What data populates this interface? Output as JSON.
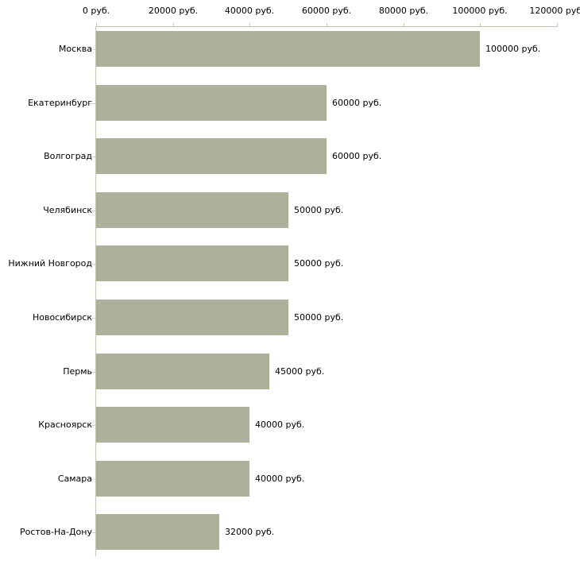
{
  "chart_data": {
    "type": "bar",
    "orientation": "horizontal",
    "title": "",
    "xlabel": "",
    "ylabel": "",
    "grid": false,
    "legend": null,
    "categories": [
      "Москва",
      "Екатеринбург",
      "Волгоград",
      "Челябинск",
      "Нижний Новгород",
      "Новосибирск",
      "Пермь",
      "Красноярск",
      "Самара",
      "Ростов-На-Дону"
    ],
    "values": [
      100000,
      60000,
      60000,
      50000,
      50000,
      50000,
      45000,
      40000,
      40000,
      32000
    ],
    "value_labels": [
      "100000 руб.",
      "60000 руб.",
      "60000 руб.",
      "50000 руб.",
      "50000 руб.",
      "50000 руб.",
      "45000 руб.",
      "40000 руб.",
      "40000 руб.",
      "32000 руб."
    ],
    "xlim": [
      0,
      120000
    ],
    "x_ticks": [
      0,
      20000,
      40000,
      60000,
      80000,
      100000,
      120000
    ],
    "x_tick_labels": [
      "0 руб.",
      "20000 руб.",
      "40000 руб.",
      "60000 руб.",
      "80000 руб.",
      "100000 руб.",
      "120000 руб."
    ],
    "colors": {
      "bar": "#ABB19A",
      "axis": "#C6C6B2",
      "category_tick": "#D4D4C0",
      "text": "#000000",
      "background": "#FFFFFF"
    }
  }
}
